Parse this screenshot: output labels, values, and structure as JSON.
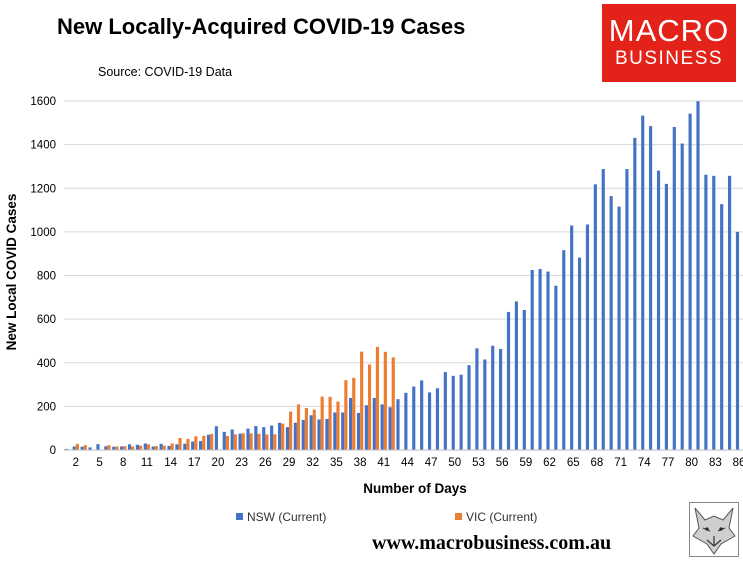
{
  "title": "New Locally-Acquired COVID-19 Cases",
  "source": "Source: COVID-19 Data",
  "logo": {
    "line1": "MACRO",
    "line2": "BUSINESS",
    "bg_color": "#e32219"
  },
  "website": "www.macrobusiness.com.au",
  "chart_data": {
    "type": "bar",
    "xlabel": "Number of Days",
    "ylabel": "New Local COVID Cases",
    "ylim": [
      0,
      1600
    ],
    "yticks": [
      0,
      200,
      400,
      600,
      800,
      1000,
      1200,
      1400,
      1600
    ],
    "xtick_labels": [
      "2",
      "5",
      "8",
      "11",
      "14",
      "17",
      "20",
      "23",
      "26",
      "29",
      "32",
      "35",
      "38",
      "41",
      "44",
      "47",
      "50",
      "53",
      "56",
      "59",
      "62",
      "65",
      "68",
      "71",
      "74",
      "77",
      "80",
      "83",
      "86"
    ],
    "grid": true,
    "legend_position": "bottom",
    "x": [
      1,
      2,
      3,
      4,
      5,
      6,
      7,
      8,
      9,
      10,
      11,
      12,
      13,
      14,
      15,
      16,
      17,
      18,
      19,
      20,
      21,
      22,
      23,
      24,
      25,
      26,
      27,
      28,
      29,
      30,
      31,
      32,
      33,
      34,
      35,
      36,
      37,
      38,
      39,
      40,
      41,
      42,
      43,
      44,
      45,
      46,
      47,
      48,
      49,
      50,
      51,
      52,
      53,
      54,
      55,
      56,
      57,
      58,
      59,
      60,
      61,
      62,
      63,
      64,
      65,
      66,
      67,
      68,
      69,
      70,
      71,
      72,
      73,
      74,
      75,
      76,
      77,
      78,
      79,
      80,
      81,
      82,
      83,
      84,
      85,
      86
    ],
    "series": [
      {
        "name": "NSW (Current)",
        "color": "#4472c4",
        "values": [
          5,
          16,
          15,
          12,
          27,
          17,
          15,
          16,
          26,
          24,
          30,
          16,
          28,
          19,
          26,
          29,
          39,
          41,
          70,
          109,
          83,
          94,
          75,
          98,
          110,
          105,
          112,
          125,
          105,
          125,
          138,
          159,
          140,
          142,
          172,
          172,
          239,
          170,
          205,
          239,
          209,
          196,
          233,
          262,
          291,
          319,
          264,
          283,
          357,
          340,
          345,
          389,
          466,
          415,
          478,
          463,
          633,
          681,
          642,
          825,
          830,
          818,
          753,
          916,
          1029,
          882,
          1034,
          1218,
          1288,
          1164,
          1116,
          1288,
          1431,
          1533,
          1485,
          1281,
          1220,
          1481,
          1405,
          1542,
          1599,
          1262,
          1257,
          1127,
          1257,
          1000
        ]
      },
      {
        "name": "VIC (Current)",
        "color": "#ed7d31",
        "values": [
          0,
          28,
          22,
          0,
          0,
          22,
          16,
          18,
          16,
          20,
          26,
          18,
          20,
          30,
          55,
          51,
          63,
          65,
          74,
          0,
          64,
          72,
          77,
          76,
          74,
          71,
          72,
          121,
          176,
          209,
          193,
          185,
          245,
          244,
          222,
          320,
          331,
          451,
          392,
          473,
          450,
          425,
          0,
          0,
          0,
          0,
          0,
          0,
          0,
          0,
          0,
          0,
          0,
          0,
          0,
          0,
          0,
          0,
          0,
          0,
          0,
          0,
          0,
          0,
          0,
          0,
          0,
          0,
          0,
          0,
          0,
          0,
          0,
          0,
          0,
          0,
          0,
          0,
          0,
          0,
          0,
          0,
          0,
          0,
          0,
          0
        ]
      }
    ]
  }
}
